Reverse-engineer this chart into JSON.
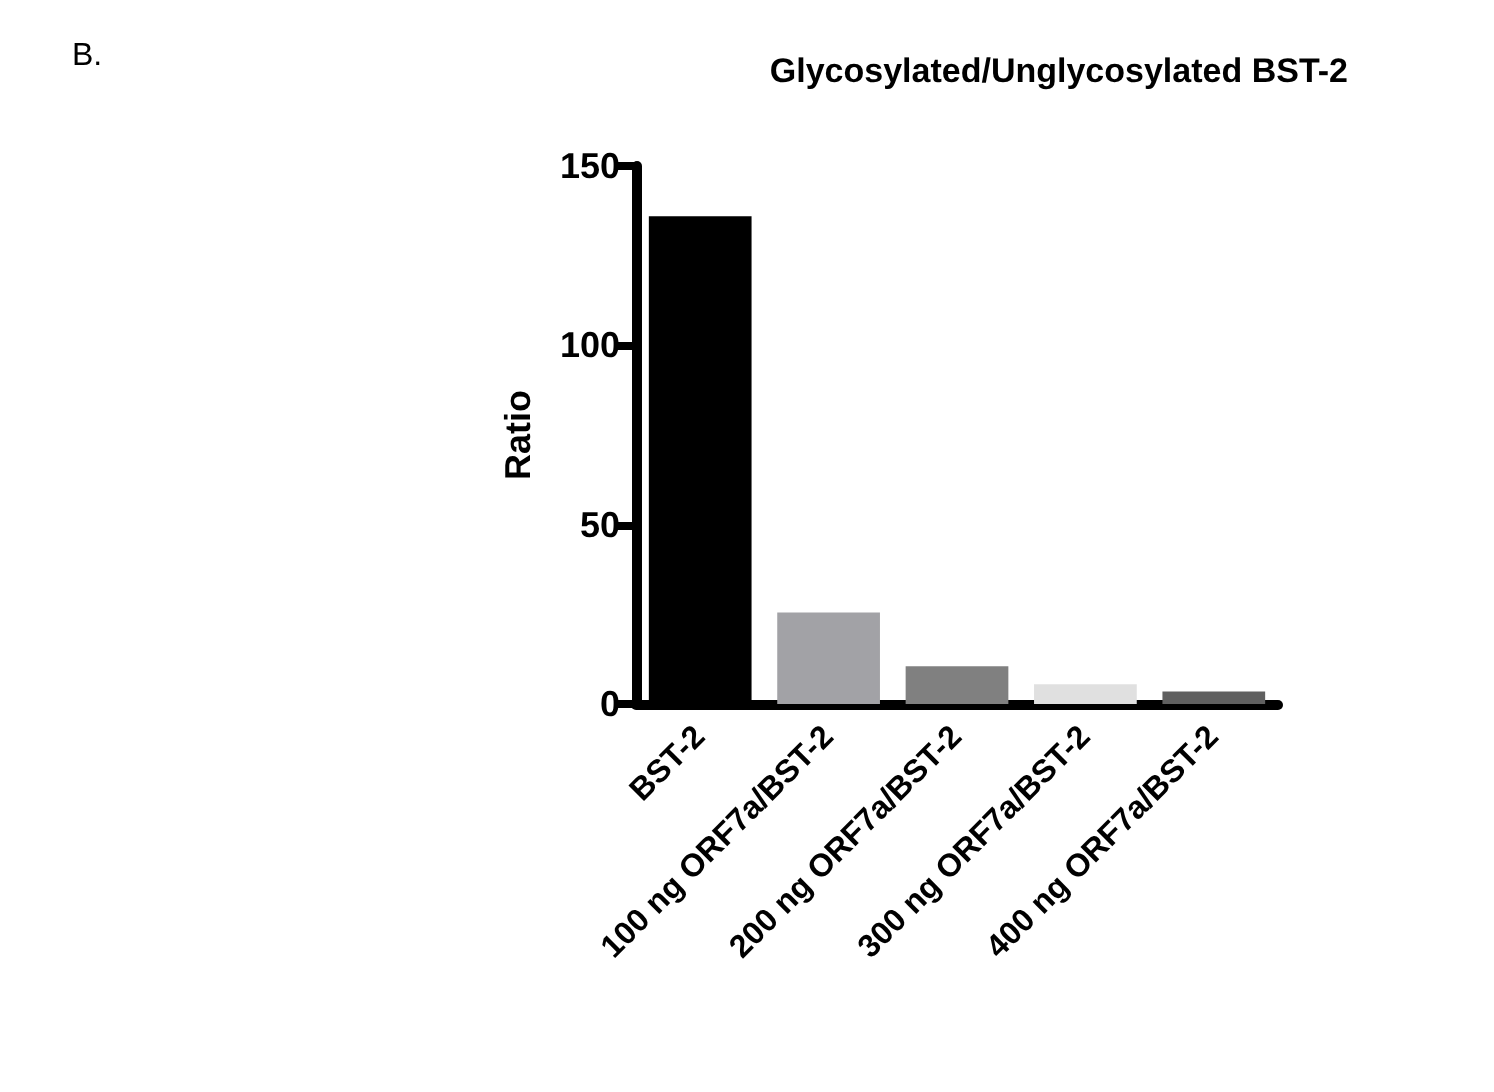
{
  "chart_data": {
    "type": "bar",
    "title": "Glycosylated/Unglycosylated BST-2",
    "ylabel": "Ratio",
    "annotations": [
      "B."
    ],
    "categories": [
      "BST-2",
      "100 ng ORF7a/BST-2",
      "200 ng ORF7a/BST-2",
      "300 ng ORF7a/BST-2",
      "400 ng ORF7a/BST-2"
    ],
    "values": [
      136,
      25.5,
      10.5,
      5.5,
      3.5
    ],
    "colors": [
      "#000000",
      "#a2a2a6",
      "#808080",
      "#e0e0e0",
      "#606060"
    ],
    "ylim": [
      0,
      150
    ],
    "yticks": [
      0,
      50,
      100,
      150
    ],
    "grid": false
  }
}
